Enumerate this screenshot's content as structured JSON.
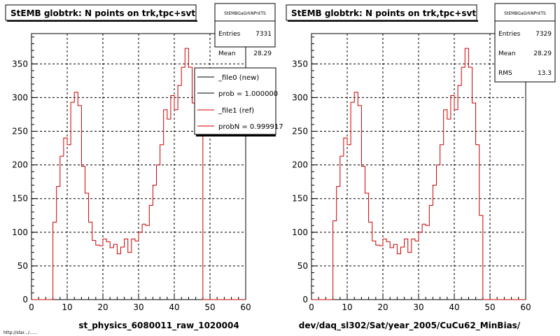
{
  "chart_data": [
    {
      "type": "step-histogram",
      "title": "StEMB globtrk: N points on trk,tpc+svt",
      "xlabel": "st_physics_6080011_raw_1020004",
      "xlim": [
        0,
        60
      ],
      "ylim": [
        0,
        395
      ],
      "x_ticks": [
        "0",
        "10",
        "20",
        "30",
        "40",
        "50",
        "60"
      ],
      "y_ticks": [
        "0",
        "50",
        "100",
        "150",
        "200",
        "250",
        "300",
        "350"
      ],
      "grid": true,
      "stats": {
        "name": "StEMBGaGrkNPntTS",
        "rows": [
          {
            "label": "Entries",
            "value": "7331"
          },
          {
            "label": "Mean",
            "value": "28.29"
          }
        ]
      },
      "legend": {
        "placement": "top-right",
        "entries": [
          {
            "label": "_file0 (new)",
            "color": "#000000"
          },
          {
            "label": "prob = 1.000000",
            "color": "#000000"
          },
          {
            "label": "_file1 (ref)",
            "color": "#cc0000"
          },
          {
            "label": "probN = 0.999917",
            "color": "#cc0000"
          }
        ]
      },
      "bin_width": 1,
      "series": [
        {
          "color": "#cc0000",
          "x": [
            0,
            1,
            2,
            3,
            4,
            5,
            6,
            7,
            8,
            9,
            10,
            11,
            12,
            13,
            14,
            15,
            16,
            17,
            18,
            19,
            20,
            21,
            22,
            23,
            24,
            25,
            26,
            27,
            28,
            29,
            30,
            31,
            32,
            33,
            34,
            35,
            36,
            37,
            38,
            39,
            40,
            41,
            42,
            43,
            44,
            45,
            46,
            47,
            48,
            49,
            50,
            51,
            52,
            53,
            54,
            55,
            56,
            57,
            58,
            59
          ],
          "values": [
            0,
            0,
            0,
            0,
            0,
            0,
            115,
            168,
            213,
            240,
            230,
            293,
            308,
            288,
            198,
            158,
            115,
            88,
            81,
            80,
            90,
            86,
            77,
            82,
            68,
            78,
            90,
            70,
            90,
            87,
            100,
            112,
            110,
            140,
            170,
            200,
            230,
            282,
            268,
            303,
            282,
            318,
            345,
            373,
            345,
            292,
            285,
            245,
            0,
            0,
            0,
            0,
            0,
            0,
            0,
            0,
            0,
            0,
            0,
            0
          ]
        }
      ]
    },
    {
      "type": "step-histogram",
      "title": "StEMB globtrk: N points on trk,tpc+svt",
      "xlabel": "dev/daq_sl302/Sat/year_2005/CuCu62_MinBias/",
      "xlim": [
        0,
        60
      ],
      "ylim": [
        0,
        395
      ],
      "x_ticks": [
        "0",
        "10",
        "20",
        "30",
        "40",
        "50",
        "60"
      ],
      "y_ticks": [
        "0",
        "50",
        "100",
        "150",
        "200",
        "250",
        "300",
        "350"
      ],
      "grid": true,
      "stats": {
        "name": "StEMBGaGrkNPntTS",
        "rows": [
          {
            "label": "Entries",
            "value": "7329"
          },
          {
            "label": "Mean",
            "value": "28.29"
          },
          {
            "label": "RMS",
            "value": "13.3"
          }
        ]
      },
      "bin_width": 1,
      "series": [
        {
          "color": "#cc0000",
          "x": [
            0,
            1,
            2,
            3,
            4,
            5,
            6,
            7,
            8,
            9,
            10,
            11,
            12,
            13,
            14,
            15,
            16,
            17,
            18,
            19,
            20,
            21,
            22,
            23,
            24,
            25,
            26,
            27,
            28,
            29,
            30,
            31,
            32,
            33,
            34,
            35,
            36,
            37,
            38,
            39,
            40,
            41,
            42,
            43,
            44,
            45,
            46,
            47,
            48,
            49,
            50,
            51,
            52,
            53,
            54,
            55,
            56,
            57,
            58,
            59
          ],
          "values": [
            0,
            0,
            0,
            0,
            0,
            0,
            117,
            168,
            213,
            240,
            230,
            293,
            308,
            288,
            198,
            158,
            115,
            87,
            81,
            80,
            90,
            86,
            77,
            82,
            68,
            78,
            90,
            70,
            90,
            87,
            100,
            112,
            110,
            140,
            170,
            200,
            230,
            282,
            268,
            303,
            282,
            318,
            345,
            373,
            345,
            292,
            230,
            125,
            0,
            0,
            0,
            0,
            0,
            0,
            0,
            0,
            0,
            0,
            0,
            0
          ]
        }
      ]
    }
  ],
  "footer_text": "http://star.../......"
}
